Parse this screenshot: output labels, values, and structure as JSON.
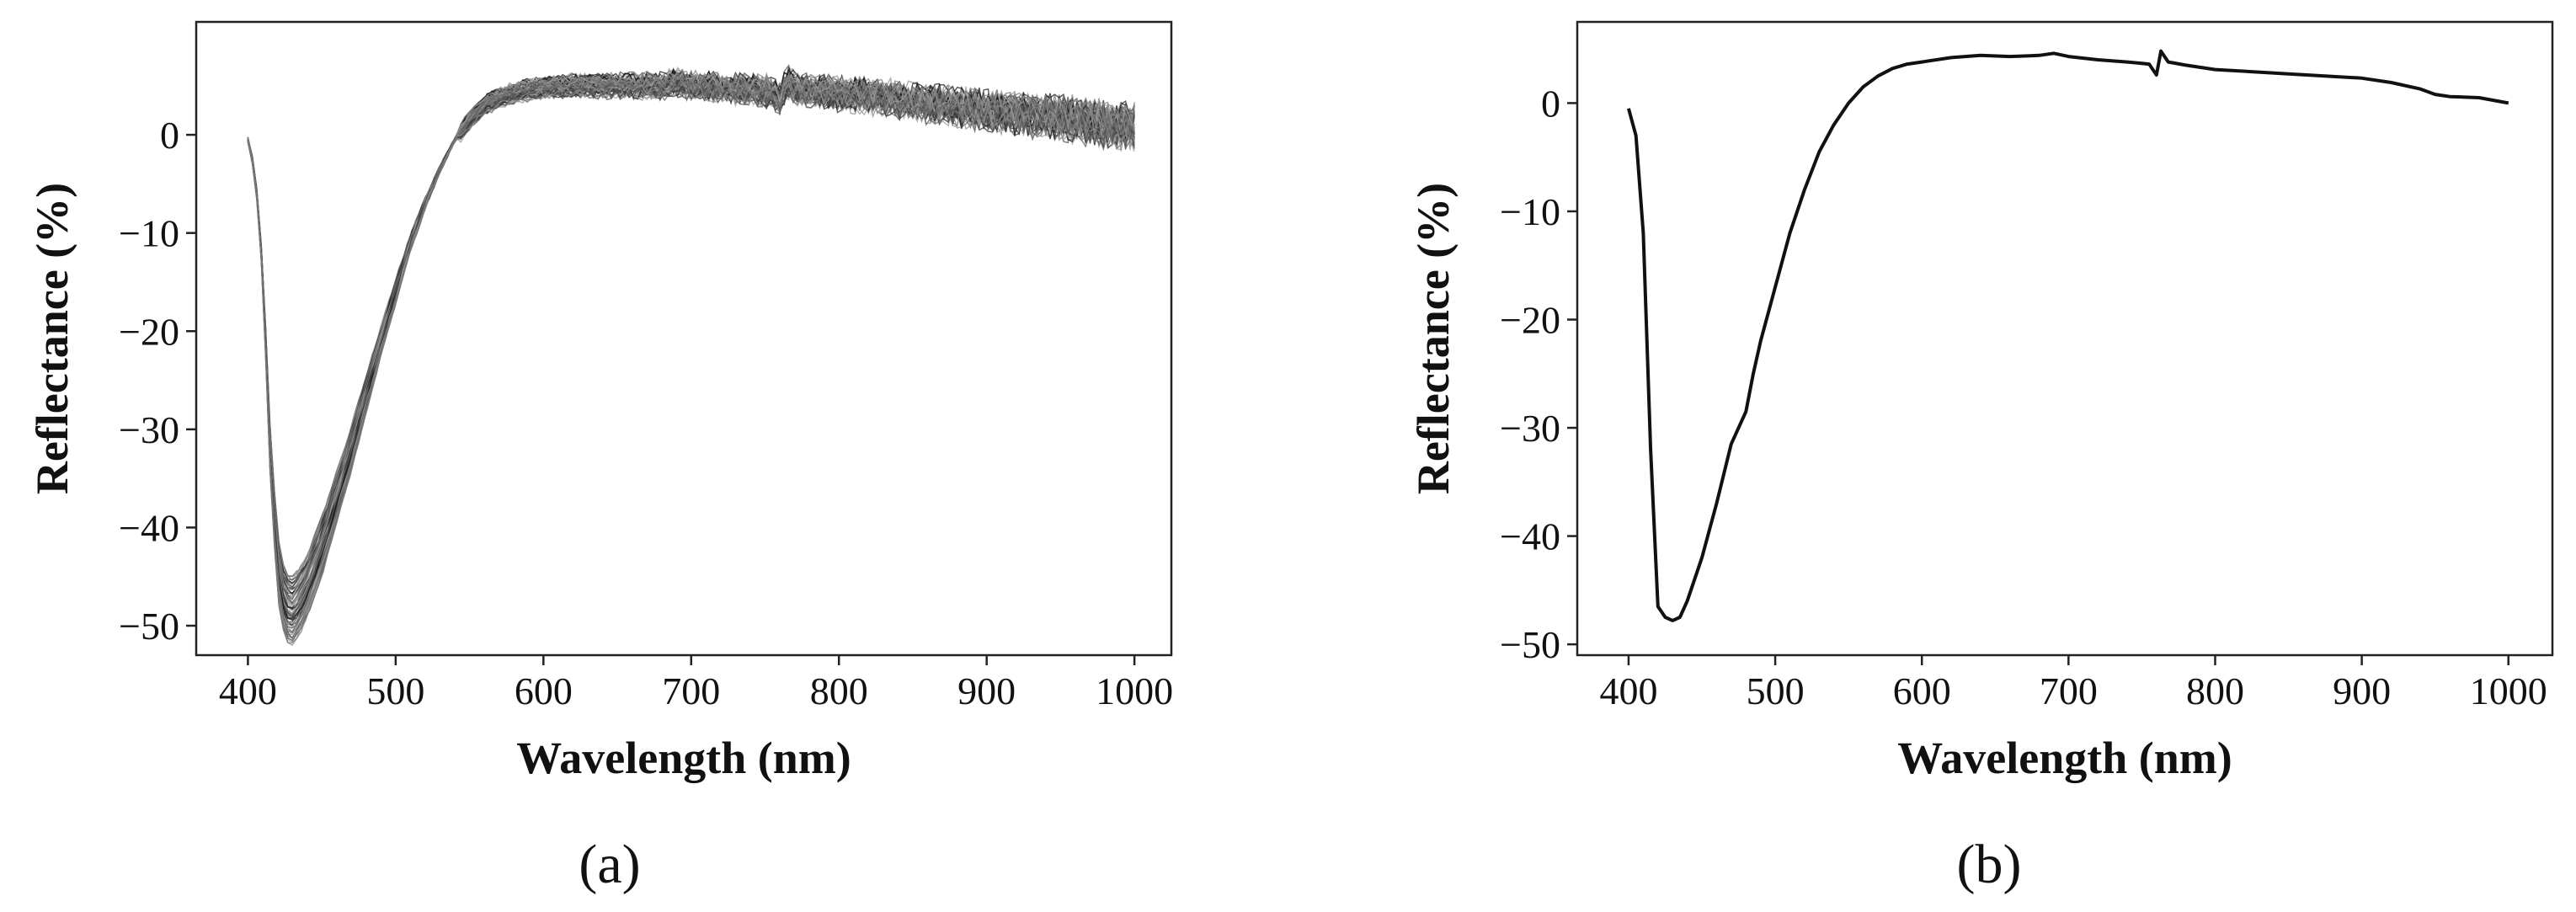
{
  "chart_data": [
    {
      "type": "line",
      "panel_label": "(a)",
      "xlabel": "Wavelength (nm)",
      "ylabel": "Reflectance (%)",
      "xlim": [
        365,
        1025
      ],
      "ylim": [
        -53,
        11.5
      ],
      "x_ticks": [
        400,
        500,
        600,
        700,
        800,
        900,
        1000
      ],
      "x_tick_labels": [
        "400",
        "500",
        "600",
        "700",
        "800",
        "900",
        "1000"
      ],
      "y_ticks": [
        0,
        -10,
        -20,
        -30,
        -40,
        -50
      ],
      "y_tick_labels": [
        "0",
        "−10",
        "−20",
        "−30",
        "−40",
        "−50"
      ],
      "grid": false,
      "legend": "none",
      "series_color": "#1a1a1a",
      "series_count": 60,
      "series_note_envelope_mean": {
        "x": [
          400,
          405,
          410,
          415,
          420,
          425,
          430,
          435,
          440,
          450,
          460,
          470,
          480,
          490,
          500,
          510,
          520,
          530,
          540,
          550,
          560,
          570,
          580,
          590,
          600,
          620,
          640,
          660,
          680,
          690,
          700,
          720,
          740,
          755,
          760,
          765,
          770,
          800,
          850,
          900,
          950,
          1000
        ],
        "values": [
          -0.5,
          -4,
          -14,
          -32,
          -44,
          -48,
          -48.5,
          -47.5,
          -46,
          -42,
          -37,
          -32,
          -26.5,
          -21,
          -16,
          -11,
          -7,
          -3.5,
          -0.5,
          1.5,
          3,
          3.8,
          4.3,
          4.6,
          4.8,
          5,
          5,
          5,
          5,
          5.3,
          5,
          4.8,
          4.6,
          4.3,
          3.5,
          5.5,
          4.7,
          4.2,
          3.4,
          2.5,
          1.7,
          0.8
        ]
      }
    },
    {
      "type": "line",
      "panel_label": "(b)",
      "xlabel": "Wavelength (nm)",
      "ylabel": "Reflectance (%)",
      "xlim": [
        365,
        1030
      ],
      "ylim": [
        -51,
        7.5
      ],
      "x_ticks": [
        400,
        500,
        600,
        700,
        800,
        900,
        1000
      ],
      "x_tick_labels": [
        "400",
        "500",
        "600",
        "700",
        "800",
        "900",
        "1000"
      ],
      "y_ticks": [
        0,
        -10,
        -20,
        -30,
        -40,
        -50
      ],
      "y_tick_labels": [
        "0",
        "−10",
        "−20",
        "−30",
        "−40",
        "−50"
      ],
      "grid": false,
      "legend": "none",
      "series": [
        {
          "color": "#111111",
          "x": [
            400,
            405,
            410,
            415,
            420,
            425,
            430,
            435,
            440,
            450,
            460,
            470,
            480,
            485,
            490,
            500,
            510,
            520,
            530,
            540,
            550,
            560,
            570,
            580,
            590,
            600,
            620,
            640,
            660,
            680,
            690,
            700,
            720,
            740,
            755,
            760,
            763,
            768,
            780,
            800,
            850,
            900,
            920,
            940,
            950,
            960,
            980,
            1000
          ],
          "values": [
            -0.5,
            -3,
            -12,
            -32,
            -46.5,
            -47.5,
            -47.8,
            -47.5,
            -46,
            -42,
            -37,
            -31.5,
            -28.5,
            -25,
            -22,
            -17,
            -12,
            -8,
            -4.5,
            -2,
            0,
            1.5,
            2.5,
            3.2,
            3.6,
            3.8,
            4.2,
            4.4,
            4.3,
            4.4,
            4.6,
            4.3,
            4.0,
            3.8,
            3.6,
            2.6,
            4.8,
            3.8,
            3.5,
            3.1,
            2.7,
            2.3,
            1.9,
            1.3,
            0.8,
            0.6,
            0.5,
            0.0
          ]
        }
      ]
    }
  ]
}
